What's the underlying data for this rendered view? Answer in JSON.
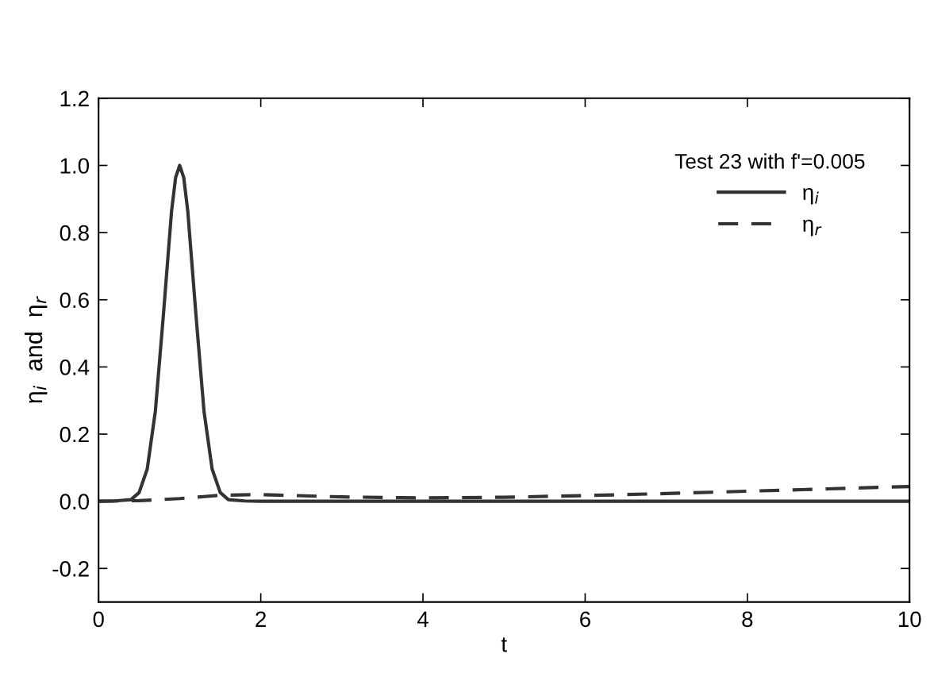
{
  "chart_data": {
    "type": "line",
    "xlabel": "t",
    "ylabel": "η$_{i}$  and  η$_{r}$",
    "legend_title": "Test 23 with f'=0.005",
    "xlim": [
      0,
      10
    ],
    "ylim": [
      -0.3,
      1.2
    ],
    "xticks": [
      0,
      2,
      4,
      6,
      8,
      10
    ],
    "yticks": [
      -0.2,
      {
        "value": 0,
        "label": "0.0"
      },
      0.2,
      0.4,
      0.6,
      0.8,
      {
        "value": 1,
        "label": "1.0"
      },
      1.2
    ],
    "grid": false,
    "legend": "top right",
    "marker": "none",
    "series": [
      {
        "name": "η$_{i}$",
        "color": "#333333",
        "line_style": "solid",
        "x": [
          0,
          0.2,
          0.4,
          0.5,
          0.6,
          0.7,
          0.8,
          0.9,
          0.95,
          1.0,
          1.05,
          1.1,
          1.2,
          1.3,
          1.4,
          1.5,
          1.6,
          1.8,
          2.0,
          4,
          6,
          8,
          10
        ],
        "values": [
          0,
          0.001,
          0.005,
          0.026,
          0.096,
          0.268,
          0.557,
          0.864,
          0.964,
          1.0,
          0.964,
          0.864,
          0.557,
          0.268,
          0.096,
          0.026,
          0.005,
          0.001,
          0,
          0,
          0,
          0,
          0
        ]
      },
      {
        "name": "η$_{r}$",
        "color": "#333333",
        "line_style": "dashed",
        "x": [
          0,
          0.5,
          1,
          1.5,
          2,
          3,
          4,
          5,
          6,
          7,
          8,
          9,
          10
        ],
        "values": [
          0,
          0.002,
          0.008,
          0.018,
          0.02,
          0.013,
          0.01,
          0.012,
          0.017,
          0.023,
          0.03,
          0.037,
          0.044
        ]
      }
    ]
  }
}
